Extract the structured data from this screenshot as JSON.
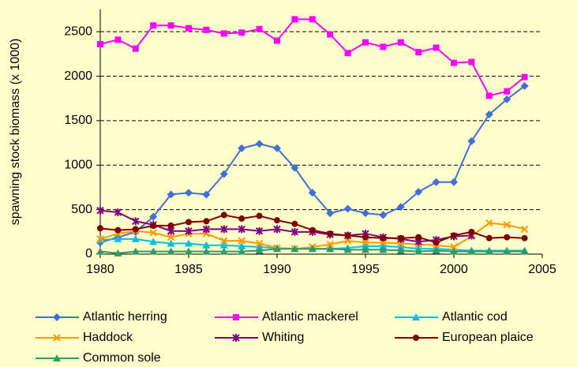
{
  "chart_data": {
    "type": "line",
    "y_label": "spawning stock biomass (x 1000)",
    "x": [
      1980,
      1981,
      1982,
      1983,
      1984,
      1985,
      1986,
      1987,
      1988,
      1989,
      1990,
      1991,
      1992,
      1993,
      1994,
      1995,
      1996,
      1997,
      1998,
      1999,
      2000,
      2001,
      2002,
      2003,
      2004
    ],
    "xlim": [
      1980,
      2005
    ],
    "xticks": [
      1980,
      1985,
      1990,
      1995,
      2000,
      2005
    ],
    "ylim": [
      0,
      2750
    ],
    "yticks": [
      0,
      500,
      1000,
      1500,
      2000,
      2500
    ],
    "grid": true,
    "legend": "bottom",
    "series": [
      {
        "name": "Atlantic herring",
        "color": "#3f6fd8",
        "marker": "diamond",
        "values": [
          130,
          190,
          250,
          420,
          670,
          690,
          670,
          900,
          1190,
          1240,
          1190,
          970,
          690,
          460,
          510,
          460,
          440,
          530,
          700,
          810,
          810,
          1270,
          1570,
          1740,
          1890
        ]
      },
      {
        "name": "Atlantic mackerel",
        "color": "#ff00ff",
        "marker": "square",
        "values": [
          2360,
          2410,
          2310,
          2570,
          2570,
          2540,
          2520,
          2480,
          2490,
          2530,
          2400,
          2640,
          2640,
          2470,
          2260,
          2380,
          2330,
          2380,
          2270,
          2320,
          2150,
          2160,
          1780,
          1830,
          1990
        ]
      },
      {
        "name": "Atlantic cod",
        "color": "#00c0e8",
        "marker": "triangle",
        "values": [
          160,
          170,
          170,
          140,
          120,
          120,
          100,
          100,
          90,
          80,
          70,
          60,
          60,
          60,
          70,
          90,
          90,
          80,
          60,
          60,
          50,
          40,
          40,
          40,
          40
        ]
      },
      {
        "name": "Haddock",
        "color": "#ff9900",
        "marker": "x",
        "values": [
          170,
          230,
          260,
          240,
          190,
          230,
          230,
          150,
          150,
          120,
          70,
          60,
          80,
          110,
          150,
          130,
          130,
          120,
          110,
          100,
          80,
          200,
          350,
          330,
          280
        ]
      },
      {
        "name": "Whiting",
        "color": "#800080",
        "marker": "star",
        "values": [
          490,
          470,
          370,
          330,
          260,
          260,
          280,
          280,
          280,
          260,
          280,
          250,
          250,
          220,
          210,
          230,
          190,
          170,
          140,
          160,
          200,
          210,
          null,
          null,
          null
        ]
      },
      {
        "name": "European plaice",
        "color": "#800000",
        "marker": "circle",
        "values": [
          290,
          270,
          280,
          320,
          320,
          360,
          370,
          440,
          400,
          430,
          380,
          340,
          270,
          230,
          210,
          190,
          180,
          180,
          190,
          130,
          210,
          250,
          180,
          190,
          180
        ]
      },
      {
        "name": "Common sole",
        "color": "#339966",
        "marker": "triangle",
        "values": [
          30,
          10,
          30,
          30,
          30,
          30,
          30,
          30,
          30,
          40,
          60,
          60,
          60,
          60,
          50,
          50,
          50,
          40,
          30,
          40,
          30,
          30,
          30,
          30,
          30
        ]
      }
    ]
  }
}
